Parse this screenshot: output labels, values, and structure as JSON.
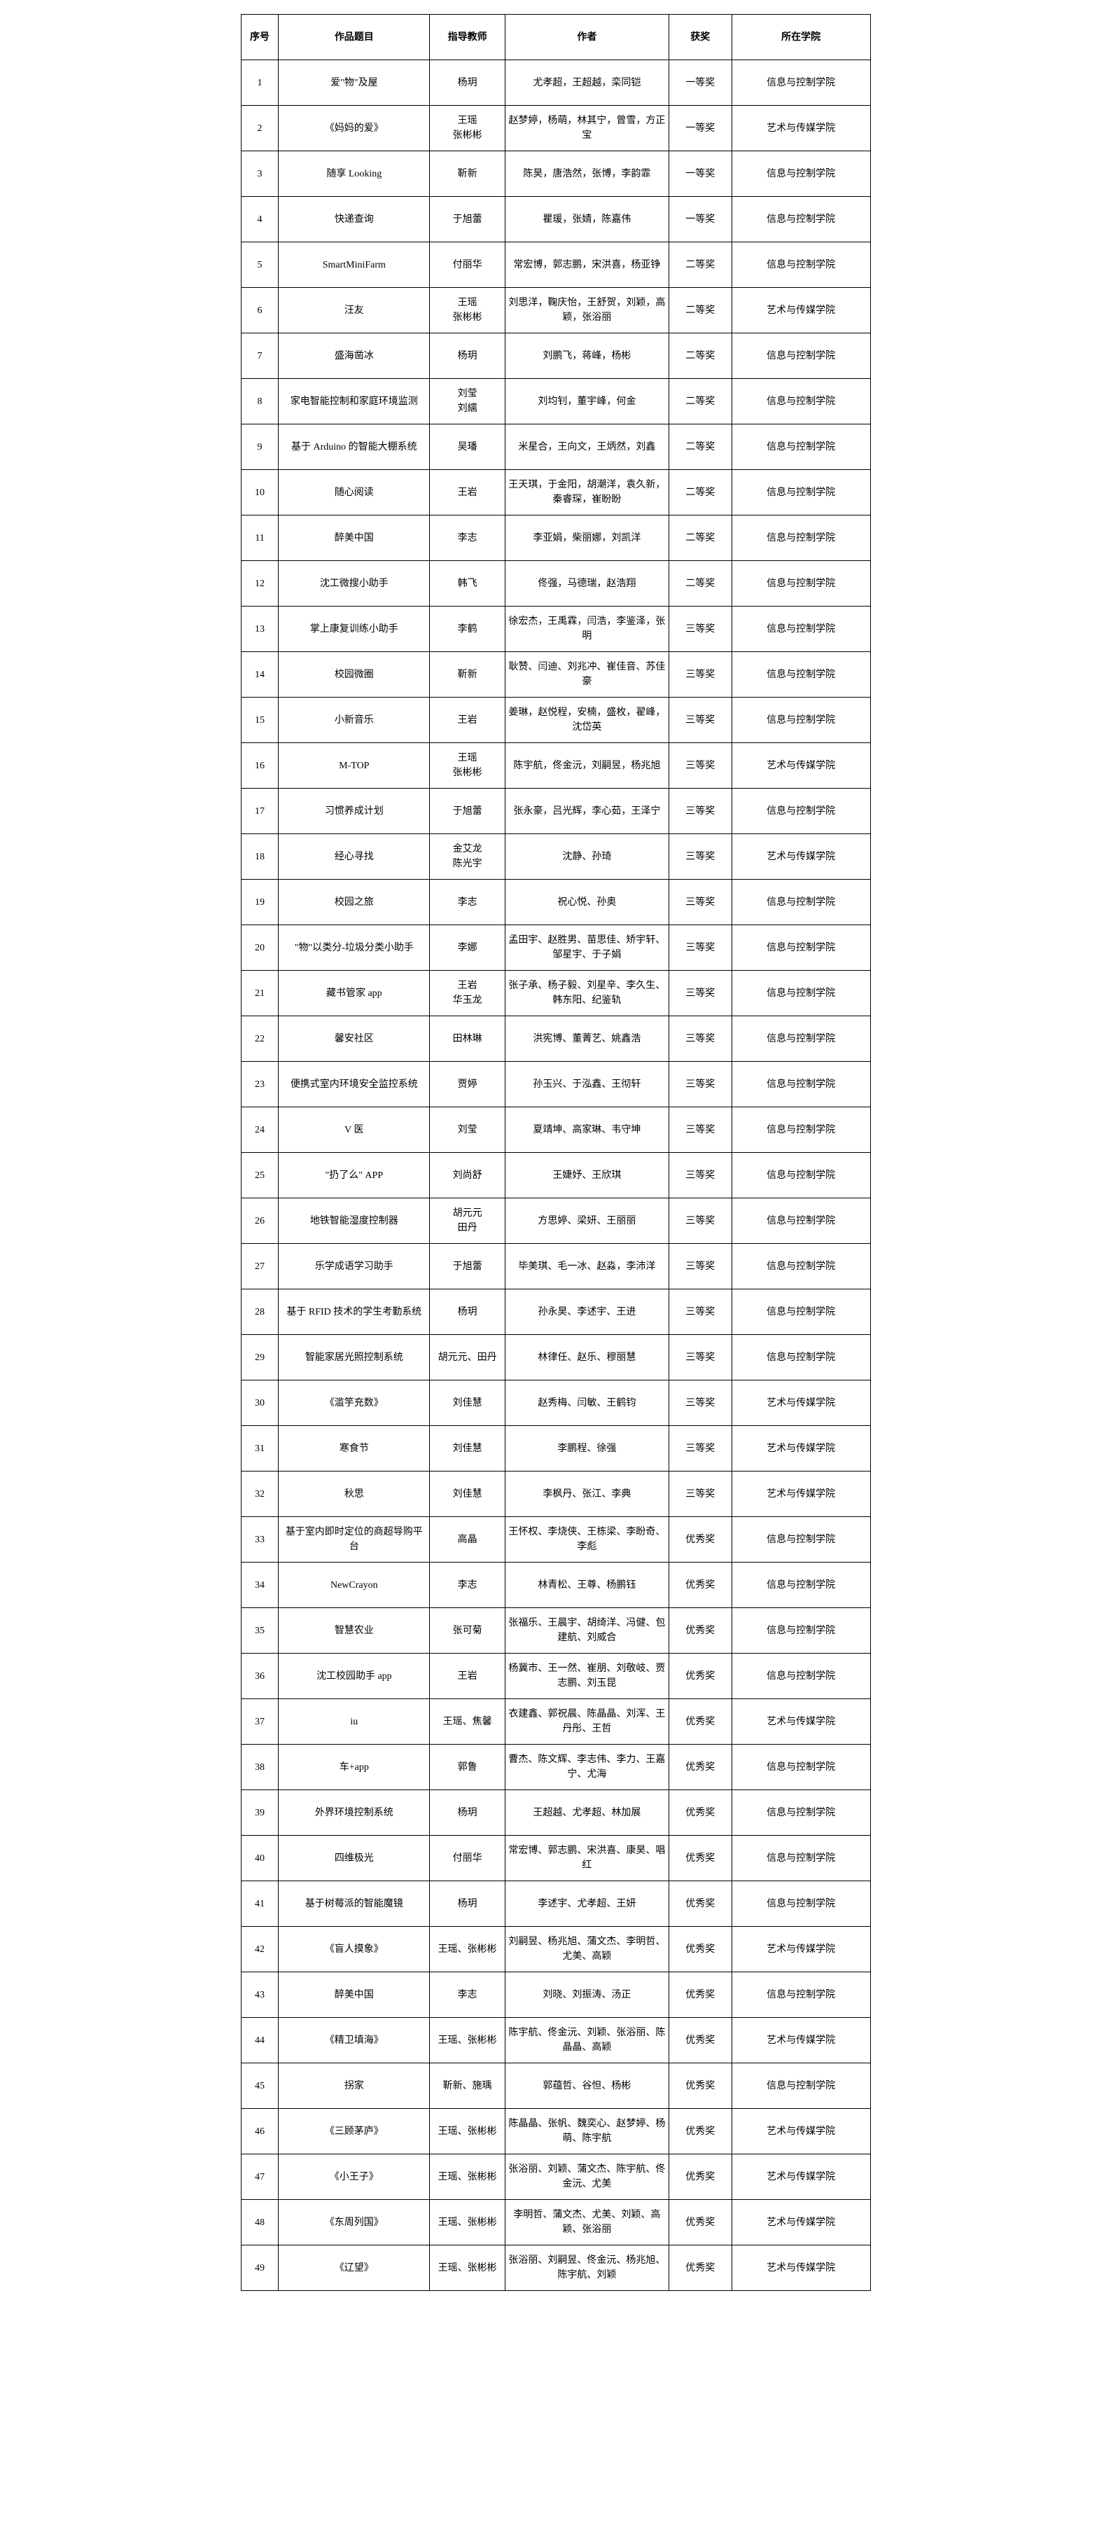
{
  "headers": {
    "seq": "序号",
    "title": "作品题目",
    "teacher": "指导教师",
    "author": "作者",
    "award": "获奖",
    "college": "所在学院"
  },
  "rows": [
    {
      "seq": "1",
      "title": "爱\"物\"及屋",
      "teacher": "杨玥",
      "author": "尤孝超，王超越，栾同铠",
      "award": "一等奖",
      "college": "信息与控制学院"
    },
    {
      "seq": "2",
      "title": "《妈妈的爱》",
      "teacher": "王瑶\n张彬彬",
      "author": "赵梦婷，杨萌，林其宁，曾雪，方正宝",
      "award": "一等奖",
      "college": "艺术与传媒学院"
    },
    {
      "seq": "3",
      "title": "随享 Looking",
      "teacher": "靳新",
      "author": "陈昊，唐浩然，张博，李韵霏",
      "award": "一等奖",
      "college": "信息与控制学院"
    },
    {
      "seq": "4",
      "title": "快递查询",
      "teacher": "于旭蕾",
      "author": "瞿瑗，张婧，陈嘉伟",
      "award": "一等奖",
      "college": "信息与控制学院"
    },
    {
      "seq": "5",
      "title": "SmartMiniFarm",
      "teacher": "付丽华",
      "author": "常宏博，郭志鹏，宋洪喜，杨亚铮",
      "award": "二等奖",
      "college": "信息与控制学院"
    },
    {
      "seq": "6",
      "title": "汪友",
      "teacher": "王瑶\n张彬彬",
      "author": "刘思洋，鞠庆怡，王舒贺，刘颖，高颖，张浴丽",
      "award": "二等奖",
      "college": "艺术与传媒学院"
    },
    {
      "seq": "7",
      "title": "盛海凿冰",
      "teacher": "杨玥",
      "author": "刘鹏飞，蒋峰，杨彬",
      "award": "二等奖",
      "college": "信息与控制学院"
    },
    {
      "seq": "8",
      "title": "家电智能控制和家庭环境监测",
      "teacher": "刘莹\n刘繻",
      "author": "刘均钊，董宇峰，何金",
      "award": "二等奖",
      "college": "信息与控制学院"
    },
    {
      "seq": "9",
      "title": "基于 Arduino 的智能大棚系统",
      "teacher": "吴璠",
      "author": "米星合，王向文，王炳然，刘鑫",
      "award": "二等奖",
      "college": "信息与控制学院"
    },
    {
      "seq": "10",
      "title": "随心阅读",
      "teacher": "王岩",
      "author": "王天琪，于金阳，胡潮洋，袁久新，秦睿琛，崔盼盼",
      "award": "二等奖",
      "college": "信息与控制学院"
    },
    {
      "seq": "11",
      "title": "醉美中国",
      "teacher": "李志",
      "author": "李亚娟，柴丽娜，刘凯洋",
      "award": "二等奖",
      "college": "信息与控制学院"
    },
    {
      "seq": "12",
      "title": "沈工微搜小助手",
      "teacher": "韩飞",
      "author": "佟强，马德瑞，赵浩翔",
      "award": "二等奖",
      "college": "信息与控制学院"
    },
    {
      "seq": "13",
      "title": "掌上康复训练小助手",
      "teacher": "李鹤",
      "author": "徐宏杰，王禹霖，闫浩，李鉴泽，张明",
      "award": "三等奖",
      "college": "信息与控制学院"
    },
    {
      "seq": "14",
      "title": "校园微圈",
      "teacher": "靳新",
      "author": "耿赞、闫迪、刘兆冲、崔佳音、苏佳豪",
      "award": "三等奖",
      "college": "信息与控制学院"
    },
    {
      "seq": "15",
      "title": "小新音乐",
      "teacher": "王岩",
      "author": "姜琳，赵悦程，安楠，盛枚，翟峰，沈岱英",
      "award": "三等奖",
      "college": "信息与控制学院"
    },
    {
      "seq": "16",
      "title": "M-TOP",
      "teacher": "王瑶\n张彬彬",
      "author": "陈宇航，佟金沅，刘嗣昱，杨兆旭",
      "award": "三等奖",
      "college": "艺术与传媒学院"
    },
    {
      "seq": "17",
      "title": "习惯养成计划",
      "teacher": "于旭蕾",
      "author": "张永豪，吕光辉，李心茹，王泽宁",
      "award": "三等奖",
      "college": "信息与控制学院"
    },
    {
      "seq": "18",
      "title": "经心寻找",
      "teacher": "金艾龙\n陈光宇",
      "author": "沈静、孙琦",
      "award": "三等奖",
      "college": "艺术与传媒学院"
    },
    {
      "seq": "19",
      "title": "校园之旅",
      "teacher": "李志",
      "author": "祝心悦、孙奥",
      "award": "三等奖",
      "college": "信息与控制学院"
    },
    {
      "seq": "20",
      "title": "\"物\"以类分-垃圾分类小助手",
      "teacher": "李娜",
      "author": "孟田宇、赵胜男、苗思佳、矫宇轩、邹星宇、于子娟",
      "award": "三等奖",
      "college": "信息与控制学院"
    },
    {
      "seq": "21",
      "title": "藏书管家 app",
      "teacher": "王岩\n华玉龙",
      "author": "张子承、杨子毅、刘星辛、李久生、韩东阳、纪鉴轨",
      "award": "三等奖",
      "college": "信息与控制学院"
    },
    {
      "seq": "22",
      "title": "馨安社区",
      "teacher": "田林琳",
      "author": "洪宪博、董菁艺、姚鑫浩",
      "award": "三等奖",
      "college": "信息与控制学院"
    },
    {
      "seq": "23",
      "title": "便携式室内环境安全监控系统",
      "teacher": "贾婷",
      "author": "孙玉兴、于泓鑫、王彻轩",
      "award": "三等奖",
      "college": "信息与控制学院"
    },
    {
      "seq": "24",
      "title": "V 医",
      "teacher": "刘莹",
      "author": "夏靖坤、高家琳、韦守坤",
      "award": "三等奖",
      "college": "信息与控制学院"
    },
    {
      "seq": "25",
      "title": "\"扔了么\" APP",
      "teacher": "刘尚舒",
      "author": "王婕妤、王欣琪",
      "award": "三等奖",
      "college": "信息与控制学院"
    },
    {
      "seq": "26",
      "title": "地铁智能湿度控制器",
      "teacher": "胡元元\n田丹",
      "author": "方思婷、梁妍、王丽丽",
      "award": "三等奖",
      "college": "信息与控制学院"
    },
    {
      "seq": "27",
      "title": "乐学成语学习助手",
      "teacher": "于旭蕾",
      "author": "毕美琪、毛一冰、赵淼，李沛洋",
      "award": "三等奖",
      "college": "信息与控制学院"
    },
    {
      "seq": "28",
      "title": "基于 RFID 技术的学生考勤系统",
      "teacher": "杨玥",
      "author": "孙永昊、李述宇、王进",
      "award": "三等奖",
      "college": "信息与控制学院"
    },
    {
      "seq": "29",
      "title": "智能家居光照控制系统",
      "teacher": "胡元元、田丹",
      "author": "林律任、赵乐、穆丽慧",
      "award": "三等奖",
      "college": "信息与控制学院"
    },
    {
      "seq": "30",
      "title": "《滥竽充数》",
      "teacher": "刘佳慧",
      "author": "赵秀梅、闫敏、王鹤钧",
      "award": "三等奖",
      "college": "艺术与传媒学院"
    },
    {
      "seq": "31",
      "title": "寒食节",
      "teacher": "刘佳慧",
      "author": "李鹏程、徐强",
      "award": "三等奖",
      "college": "艺术与传媒学院"
    },
    {
      "seq": "32",
      "title": "秋思",
      "teacher": "刘佳慧",
      "author": "李枫丹、张江、李典",
      "award": "三等奖",
      "college": "艺术与传媒学院"
    },
    {
      "seq": "33",
      "title": "基于室内即时定位的商超导购平台",
      "teacher": "高晶",
      "author": "王怀权、李烧侠、王栋梁、李盼奇、李彪",
      "award": "优秀奖",
      "college": "信息与控制学院"
    },
    {
      "seq": "34",
      "title": "NewCrayon",
      "teacher": "李志",
      "author": "林青松、王尊、杨鹏钰",
      "award": "优秀奖",
      "college": "信息与控制学院"
    },
    {
      "seq": "35",
      "title": "智慧农业",
      "teacher": "张可菊",
      "author": "张福乐、王晨宇、胡绮洋、冯健、包建航、刘威合",
      "award": "优秀奖",
      "college": "信息与控制学院"
    },
    {
      "seq": "36",
      "title": "沈工校园助手 app",
      "teacher": "王岩",
      "author": "杨冀市、王一然、崔朋、刘敬岐、贾志鹏、刘玉昆",
      "award": "优秀奖",
      "college": "信息与控制学院"
    },
    {
      "seq": "37",
      "title": "iu",
      "teacher": "王瑶、焦馨",
      "author": "衣建鑫、郭祝晨、陈晶晶、刘浑、王丹彤、王哲",
      "award": "优秀奖",
      "college": "艺术与传媒学院"
    },
    {
      "seq": "38",
      "title": "车+app",
      "teacher": "郭鲁",
      "author": "曹杰、陈文辉、李志伟、李力、王嘉宁、尤海",
      "award": "优秀奖",
      "college": "信息与控制学院"
    },
    {
      "seq": "39",
      "title": "外界环境控制系统",
      "teacher": "杨玥",
      "author": "王超越、尤孝超、林加展",
      "award": "优秀奖",
      "college": "信息与控制学院"
    },
    {
      "seq": "40",
      "title": "四维极光",
      "teacher": "付丽华",
      "author": "常宏博、郭志鹏、宋洪喜、康昊、唱红",
      "award": "优秀奖",
      "college": "信息与控制学院"
    },
    {
      "seq": "41",
      "title": "基于树莓派的智能魔镜",
      "teacher": "杨玥",
      "author": "李述宇、尤孝超、王妍",
      "award": "优秀奖",
      "college": "信息与控制学院"
    },
    {
      "seq": "42",
      "title": "《盲人摸象》",
      "teacher": "王瑶、张彬彬",
      "author": "刘嗣昱、杨兆旭、蒲文杰、李明哲、尤美、高颖",
      "award": "优秀奖",
      "college": "艺术与传媒学院"
    },
    {
      "seq": "43",
      "title": "醉美中国",
      "teacher": "李志",
      "author": "刘晓、刘振涛、汤正",
      "award": "优秀奖",
      "college": "信息与控制学院"
    },
    {
      "seq": "44",
      "title": "《精卫填海》",
      "teacher": "王瑶、张彬彬",
      "author": "陈宇航、佟金沅、刘颖、张浴丽、陈晶晶、高颖",
      "award": "优秀奖",
      "college": "艺术与传媒学院"
    },
    {
      "seq": "45",
      "title": "拐家",
      "teacher": "靳新、施瑀",
      "author": "郭蕴哲、谷怛、杨彬",
      "award": "优秀奖",
      "college": "信息与控制学院"
    },
    {
      "seq": "46",
      "title": "《三顾茅庐》",
      "teacher": "王瑶、张彬彬",
      "author": "陈晶晶、张帆、魏奕心、赵梦婷、杨萌、陈宇航",
      "award": "优秀奖",
      "college": "艺术与传媒学院"
    },
    {
      "seq": "47",
      "title": "《小王子》",
      "teacher": "王瑶、张彬彬",
      "author": "张浴丽、刘颖、蒲文杰、陈宇航、佟金沅、尤美",
      "award": "优秀奖",
      "college": "艺术与传媒学院"
    },
    {
      "seq": "48",
      "title": "《东周列国》",
      "teacher": "王瑶、张彬彬",
      "author": "李明哲、蒲文杰、尤美、刘颖、高颖、张浴丽",
      "award": "优秀奖",
      "college": "艺术与传媒学院"
    },
    {
      "seq": "49",
      "title": "《辽望》",
      "teacher": "王瑶、张彬彬",
      "author": "张浴丽、刘嗣昱、佟金沅、杨兆旭、陈宇航、刘颖",
      "award": "优秀奖",
      "college": "艺术与传媒学院"
    }
  ]
}
